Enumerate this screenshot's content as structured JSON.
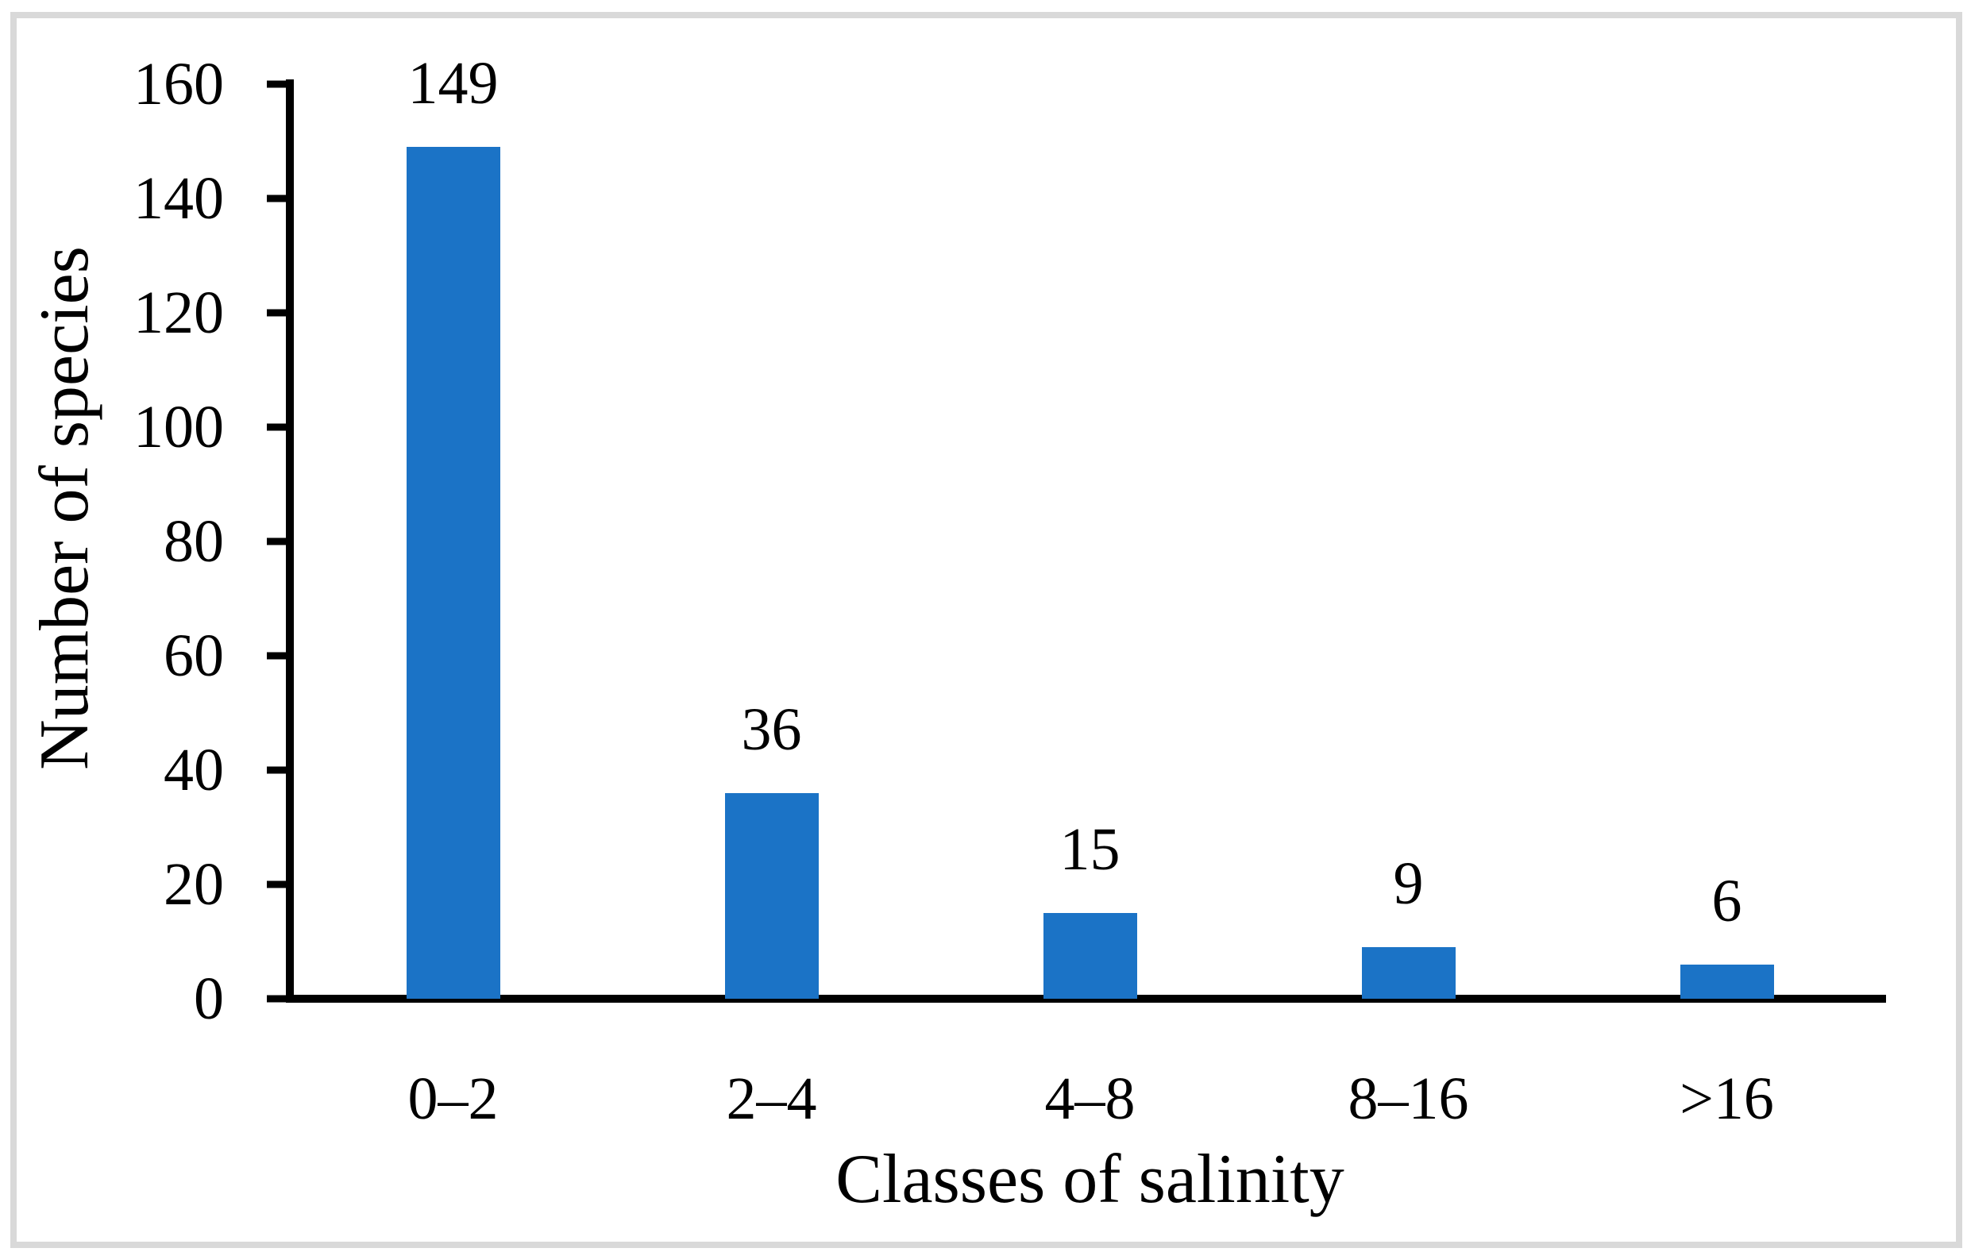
{
  "figure": {
    "background_color": "#FFFFFF",
    "border_color": "#D9D9D9"
  },
  "chart_data": {
    "type": "bar",
    "title": "",
    "categories": [
      "0–2",
      "2–4",
      "4–8",
      "8–16",
      ">16"
    ],
    "values": [
      149,
      36,
      15,
      9,
      6
    ],
    "data_labels": [
      "149",
      "36",
      "15",
      "9",
      "6"
    ],
    "xlabel": "Classes of salinity",
    "ylabel": "Number of species",
    "ylim": [
      0,
      160
    ],
    "yticks": [
      0,
      20,
      40,
      60,
      80,
      100,
      120,
      140,
      160
    ],
    "bar_color": "#1B73C6",
    "axis_color": "#000000",
    "text_color": "#000000",
    "grid": "off",
    "legend": "none"
  }
}
